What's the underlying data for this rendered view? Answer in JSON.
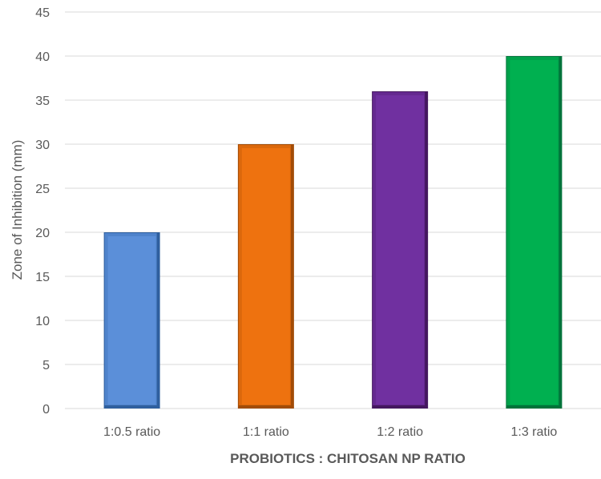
{
  "chart_data": {
    "type": "bar",
    "title": "",
    "xlabel": "PROBIOTICS : CHITOSAN NP RATIO",
    "ylabel": "Zone of Inhibition (mm)",
    "categories": [
      "1:0.5 ratio",
      "1:1 ratio",
      "1:2 ratio",
      "1:3 ratio"
    ],
    "values": [
      20,
      30,
      36,
      40
    ],
    "ylim": [
      0,
      45
    ],
    "yticks": [
      0,
      5,
      10,
      15,
      20,
      25,
      30,
      35,
      40,
      45
    ],
    "grid": true,
    "legend": "none",
    "bar_colors": [
      "#5b8fd9",
      "#ee720f",
      "#7030a0",
      "#00b050"
    ],
    "bar_edge_colors": [
      "#2f5f9e",
      "#a24c07",
      "#44175f",
      "#00733a"
    ],
    "gridline_color": "#d9d9d9",
    "text_color": "#595959"
  }
}
